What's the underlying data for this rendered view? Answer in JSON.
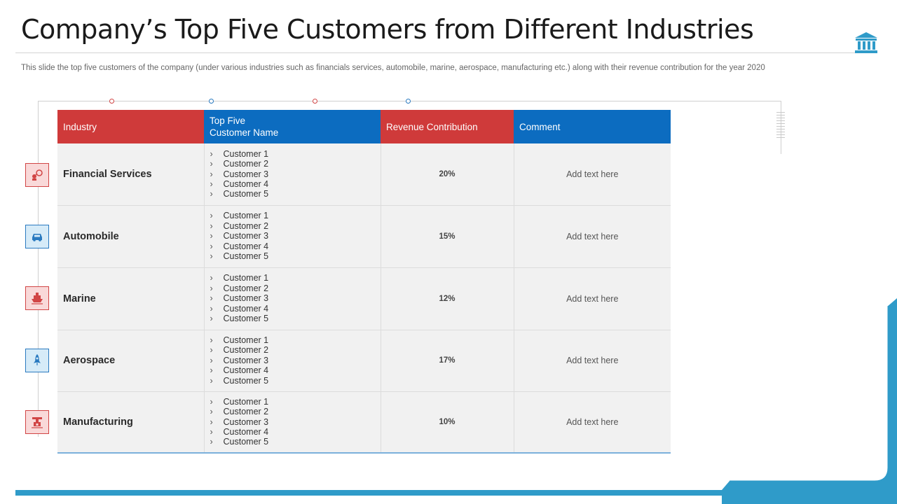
{
  "title": "Company’s Top Five Customers from Different Industries",
  "subtitle": "This slide the top five  customers of the company (under various industries such as financials services, automobile, marine, aerospace, manufacturing etc.) along with their revenue contribution for the year 2020",
  "icons": {
    "header": "bank-building-icon",
    "rows": [
      "finance-network-icon",
      "car-icon",
      "ship-icon",
      "rocket-icon",
      "factory-icon"
    ]
  },
  "colors": {
    "red": "#cf3a3a",
    "blue": "#0c6cc0",
    "accent": "#2f9bc9"
  },
  "table": {
    "headers": {
      "industry": "Industry",
      "customer_line1": "Top Five",
      "customer_line2": "Customer Name",
      "revenue": "Revenue Contribution",
      "comment": "Comment"
    },
    "rows": [
      {
        "industry": "Financial Services",
        "customers": [
          "Customer 1",
          "Customer 2",
          "Customer 3",
          "Customer 4",
          "Customer 5"
        ],
        "revenue": "20%",
        "comment": "Add text here"
      },
      {
        "industry": "Automobile",
        "customers": [
          "Customer 1",
          "Customer 2",
          "Customer 3",
          "Customer 4",
          "Customer 5"
        ],
        "revenue": "15%",
        "comment": "Add text here"
      },
      {
        "industry": "Marine",
        "customers": [
          "Customer 1",
          "Customer 2",
          "Customer 3",
          "Customer 4",
          "Customer 5"
        ],
        "revenue": "12%",
        "comment": "Add text here"
      },
      {
        "industry": "Aerospace",
        "customers": [
          "Customer 1",
          "Customer 2",
          "Customer 3",
          "Customer 4",
          "Customer 5"
        ],
        "revenue": "17%",
        "comment": "Add text here"
      },
      {
        "industry": "Manufacturing",
        "customers": [
          "Customer 1",
          "Customer 2",
          "Customer 3",
          "Customer 4",
          "Customer 5"
        ],
        "revenue": "10%",
        "comment": "Add text here"
      }
    ]
  }
}
